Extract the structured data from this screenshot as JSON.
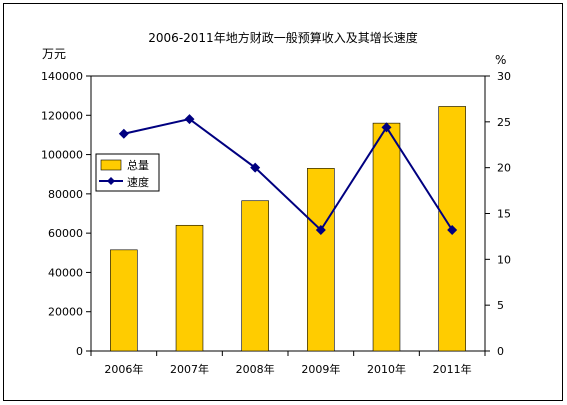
{
  "chart_data": {
    "type": "bar+line",
    "title": "2006-2011年地方财政一般预算收入及其增长速度",
    "categories": [
      "2006年",
      "2007年",
      "2008年",
      "2009年",
      "2010年",
      "2011年"
    ],
    "series": [
      {
        "name": "总量",
        "type": "bar",
        "axis": "left",
        "color": "#FFCC00",
        "values": [
          51500,
          64000,
          76500,
          93000,
          116000,
          124500
        ]
      },
      {
        "name": "速度",
        "type": "line",
        "axis": "right",
        "color": "#000080",
        "values": [
          23.7,
          25.3,
          20.0,
          13.2,
          24.4,
          13.2
        ]
      }
    ],
    "y_left": {
      "label": "万元",
      "range": [
        0,
        140000
      ],
      "ticks": [
        "0",
        "20000",
        "40000",
        "60000",
        "80000",
        "100000",
        "120000",
        "140000"
      ]
    },
    "y_right": {
      "label": "%",
      "range": [
        0,
        30
      ],
      "ticks": [
        "0",
        "5",
        "10",
        "15",
        "20",
        "25",
        "30"
      ]
    },
    "legend_position": "left",
    "grid": false
  }
}
